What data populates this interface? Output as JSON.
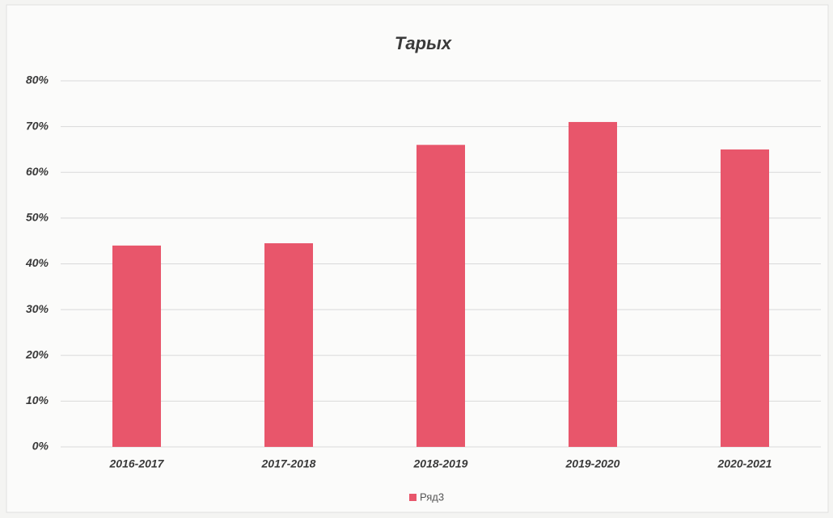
{
  "chart_data": {
    "type": "bar",
    "title": "Тарых",
    "categories": [
      "2016-2017",
      "2017-2018",
      "2018-2019",
      "2019-2020",
      "2020-2021"
    ],
    "series": [
      {
        "name": "Ряд3",
        "color": "#e8566b",
        "values": [
          44,
          44.5,
          66,
          71,
          65
        ]
      }
    ],
    "ylim": [
      0,
      80
    ],
    "yticks": [
      {
        "value": 0,
        "label": "0%"
      },
      {
        "value": 10,
        "label": "10%"
      },
      {
        "value": 20,
        "label": "20%"
      },
      {
        "value": 30,
        "label": "30%"
      },
      {
        "value": 40,
        "label": "40%"
      },
      {
        "value": 50,
        "label": "50%"
      },
      {
        "value": 60,
        "label": "60%"
      },
      {
        "value": 70,
        "label": "70%"
      },
      {
        "value": 80,
        "label": "80%"
      }
    ],
    "grid": true,
    "legend": "bottom"
  }
}
